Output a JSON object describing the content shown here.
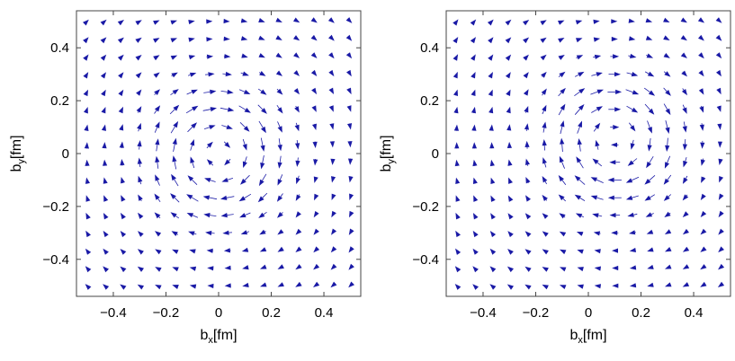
{
  "chart_data": [
    {
      "type": "vector-field",
      "title": "",
      "xlabel": "b",
      "xlabel_sub": "x",
      "xlabel_unit": "[fm]",
      "ylabel": "b",
      "ylabel_sub": "y",
      "ylabel_unit": "[fm]",
      "xlim": [
        -0.54,
        0.54
      ],
      "ylim": [
        -0.54,
        0.54
      ],
      "xticks": [
        -0.4,
        -0.2,
        0,
        0.2,
        0.4
      ],
      "xtick_labels": [
        "−0.4",
        "−0.2",
        "0",
        "0.2",
        "0.4"
      ],
      "yticks": [
        -0.4,
        -0.2,
        0,
        0.2,
        0.4
      ],
      "ytick_labels": [
        "−0.4",
        "−0.2",
        "0",
        "0.2",
        "0.4"
      ],
      "grid": false,
      "arrow_color": "#1a1aa6",
      "field": {
        "pattern": "vortex",
        "center": [
          0,
          0
        ],
        "rotation": "clockwise",
        "grid_x": [
          -0.5,
          -0.433,
          -0.367,
          -0.3,
          -0.233,
          -0.167,
          -0.1,
          -0.033,
          0.033,
          0.1,
          0.167,
          0.233,
          0.3,
          0.367,
          0.433,
          0.5
        ],
        "grid_y": [
          -0.5,
          -0.433,
          -0.367,
          -0.3,
          -0.233,
          -0.167,
          -0.1,
          -0.033,
          0.033,
          0.1,
          0.167,
          0.233,
          0.3,
          0.367,
          0.433,
          0.5
        ]
      }
    },
    {
      "type": "vector-field",
      "title": "",
      "xlabel": "b",
      "xlabel_sub": "x",
      "xlabel_unit": "[fm]",
      "ylabel": "b",
      "ylabel_sub": "y",
      "ylabel_unit": "[fm]",
      "xlim": [
        -0.54,
        0.54
      ],
      "ylim": [
        -0.54,
        0.54
      ],
      "xticks": [
        -0.4,
        -0.2,
        0,
        0.2,
        0.4
      ],
      "xtick_labels": [
        "−0.4",
        "−0.2",
        "0",
        "0.2",
        "0.4"
      ],
      "yticks": [
        -0.4,
        -0.2,
        0,
        0.2,
        0.4
      ],
      "ytick_labels": [
        "−0.4",
        "−0.2",
        "0",
        "0.2",
        "0.4"
      ],
      "grid": false,
      "arrow_color": "#1a1aa6",
      "field": {
        "pattern": "vortex",
        "center": [
          0.1,
          0.05
        ],
        "rotation": "clockwise",
        "grid_x": [
          -0.5,
          -0.433,
          -0.367,
          -0.3,
          -0.233,
          -0.167,
          -0.1,
          -0.033,
          0.033,
          0.1,
          0.167,
          0.233,
          0.3,
          0.367,
          0.433,
          0.5
        ],
        "grid_y": [
          -0.5,
          -0.433,
          -0.367,
          -0.3,
          -0.233,
          -0.167,
          -0.1,
          -0.033,
          0.033,
          0.1,
          0.167,
          0.233,
          0.3,
          0.367,
          0.433,
          0.5
        ]
      }
    }
  ]
}
